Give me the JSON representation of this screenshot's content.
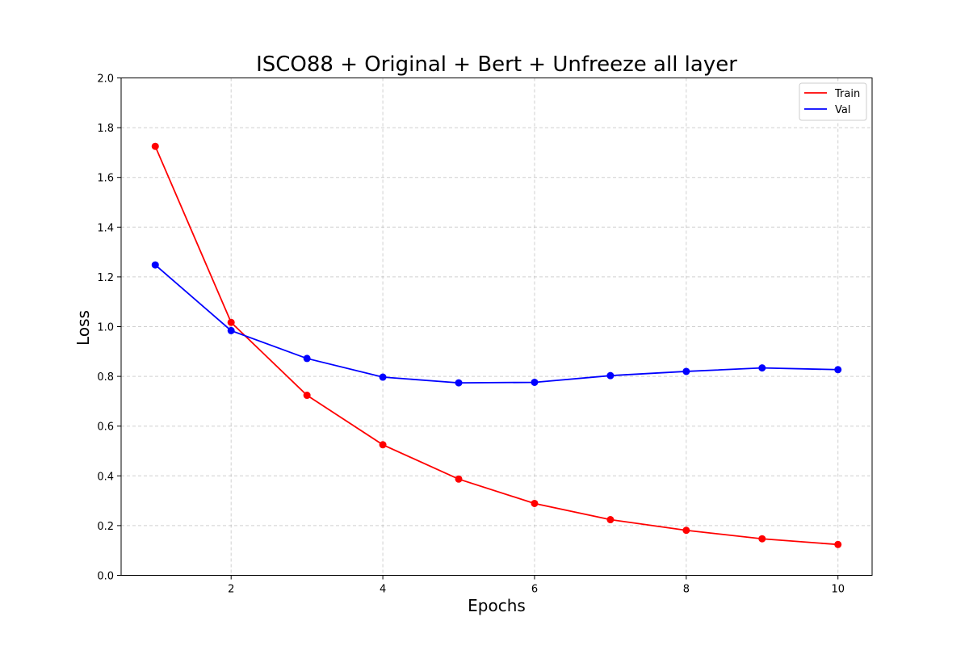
{
  "chart_data": {
    "type": "line",
    "title": "ISCO88 + Original + Bert + Unfreeze all layer",
    "xlabel": "Epochs",
    "ylabel": "Loss",
    "x": [
      1,
      2,
      3,
      4,
      5,
      6,
      7,
      8,
      9,
      10
    ],
    "xlim": [
      0.55,
      10.45
    ],
    "ylim": [
      0,
      2.0
    ],
    "xticks": [
      2,
      4,
      6,
      8,
      10
    ],
    "yticks": [
      0.0,
      0.2,
      0.4,
      0.6,
      0.8,
      1.0,
      1.2,
      1.4,
      1.6,
      1.8,
      2.0
    ],
    "xtick_labels": [
      "2",
      "4",
      "6",
      "8",
      "10"
    ],
    "ytick_labels": [
      "0.0",
      "0.2",
      "0.4",
      "0.6",
      "0.8",
      "1.0",
      "1.2",
      "1.4",
      "1.6",
      "1.8",
      "2.0"
    ],
    "grid": true,
    "legend_position": "top-right",
    "series": [
      {
        "name": "Train",
        "color": "#ff0000",
        "values": [
          1.725,
          1.017,
          0.724,
          0.525,
          0.387,
          0.289,
          0.224,
          0.181,
          0.147,
          0.124
        ]
      },
      {
        "name": "Val",
        "color": "#0000ff",
        "values": [
          1.248,
          0.984,
          0.872,
          0.797,
          0.774,
          0.776,
          0.803,
          0.82,
          0.834,
          0.827
        ]
      }
    ]
  }
}
